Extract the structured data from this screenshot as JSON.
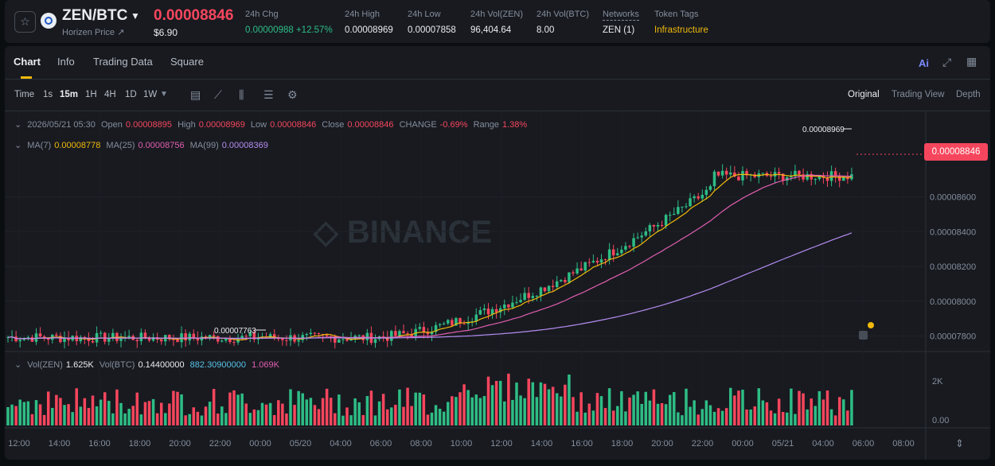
{
  "header": {
    "pair": "ZEN/BTC",
    "subtitle": "Horizen Price ↗",
    "last_price": "0.00008846",
    "usd_price": "$6.90",
    "stats": [
      {
        "label": "24h Chg",
        "value": "0.00000988 +12.57%",
        "color": "green"
      },
      {
        "label": "24h High",
        "value": "0.00008969"
      },
      {
        "label": "24h Low",
        "value": "0.00007858"
      },
      {
        "label": "24h Vol(ZEN)",
        "value": "96,404.64"
      },
      {
        "label": "24h Vol(BTC)",
        "value": "8.00"
      },
      {
        "label": "Networks",
        "value": "ZEN (1)"
      },
      {
        "label": "Token Tags",
        "value": "Infrastructure",
        "color": "yellow"
      }
    ]
  },
  "tabs": [
    "Chart",
    "Info",
    "Trading Data",
    "Square"
  ],
  "ai_label": "Ai",
  "toolbar": {
    "timeframes": [
      "Time",
      "1s",
      "15m",
      "1H",
      "4H",
      "1D",
      "1W"
    ],
    "active_timeframe": "15m",
    "views": [
      "Original",
      "Trading View",
      "Depth"
    ],
    "active_view": "Original"
  },
  "ohlc": {
    "date": "2026/05/21 05:30",
    "open_label": "Open",
    "open": "0.00008895",
    "high_label": "High",
    "high": "0.00008969",
    "low_label": "Low",
    "low": "0.00008846",
    "close_label": "Close",
    "close": "0.00008846",
    "change_label": "CHANGE",
    "change": "-0.69%",
    "range_label": "Range",
    "range": "1.38%"
  },
  "ma": {
    "ma7_label": "MA(7)",
    "ma7": "0.00008778",
    "ma25_label": "MA(25)",
    "ma25": "0.00008756",
    "ma99_label": "MA(99)",
    "ma99": "0.00008369"
  },
  "volume": {
    "zen_label": "Vol(ZEN)",
    "zen": "1.625K",
    "btc_label": "Vol(BTC)",
    "btc": "0.14400000",
    "v1": "882.30900000",
    "v2": "1.069K"
  },
  "watermark": "BINANCE",
  "current_price_tag": "0.00008846",
  "chart_data": {
    "type": "candlestick",
    "price_axis": [
      "0.00008600",
      "0.00008400",
      "0.00008200",
      "0.00008000",
      "0.00007800"
    ],
    "volume_axis": [
      "2K",
      "0.00"
    ],
    "time_axis": [
      "12:00",
      "14:00",
      "16:00",
      "18:00",
      "20:00",
      "22:00",
      "00:00",
      "05/20",
      "04:00",
      "06:00",
      "08:00",
      "10:00",
      "12:00",
      "14:00",
      "16:00",
      "18:00",
      "20:00",
      "22:00",
      "00:00",
      "05/21",
      "04:00",
      "06:00",
      "08:00"
    ],
    "annotations": {
      "high": "0.00008969",
      "low": "0.00007763"
    },
    "ylim": [
      7.72e-05,
      9e-05
    ],
    "colors": {
      "up": "#2ebd85",
      "down": "#f6465d",
      "ma7": "#f0b90b",
      "ma25": "#e25eb0",
      "ma99": "#b58cf0"
    }
  }
}
